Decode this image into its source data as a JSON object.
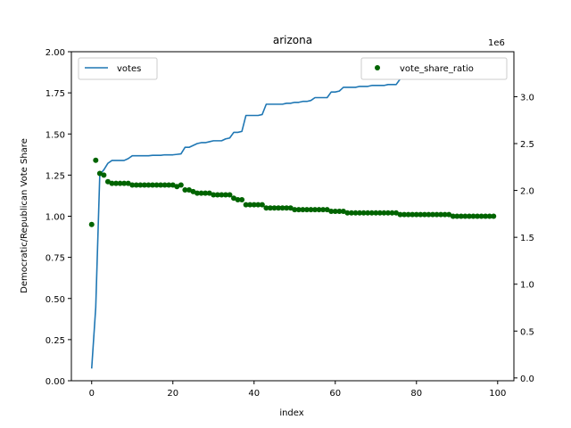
{
  "chart_data": {
    "type": "line+scatter",
    "title": "arizona",
    "xlabel": "index",
    "ylabel": "Democratic/Republican Vote Share",
    "y2_offset_label": "1e6",
    "xlim": [
      -5,
      104
    ],
    "ylim": [
      0,
      2.0
    ],
    "y2lim": [
      -0.03,
      3.48
    ],
    "x_ticks": [
      0,
      20,
      40,
      60,
      80,
      100
    ],
    "x_tick_labels": [
      "0",
      "20",
      "40",
      "60",
      "80",
      "100"
    ],
    "y_ticks": [
      0,
      0.25,
      0.5,
      0.75,
      1.0,
      1.25,
      1.5,
      1.75,
      2.0
    ],
    "y_tick_labels": [
      "0.00",
      "0.25",
      "0.50",
      "0.75",
      "1.00",
      "1.25",
      "1.50",
      "1.75",
      "2.00"
    ],
    "y2_ticks": [
      0,
      0.5,
      1.0,
      1.5,
      2.0,
      2.5,
      3.0
    ],
    "y2_tick_labels": [
      "0.0",
      "0.5",
      "1.0",
      "1.5",
      "2.0",
      "2.5",
      "3.0"
    ],
    "series": [
      {
        "name": "votes",
        "kind": "line",
        "axis": "right",
        "color": "#1f77b4",
        "x": [
          0,
          1,
          2,
          3,
          4,
          5,
          6,
          7,
          8,
          9,
          10,
          11,
          12,
          13,
          14,
          15,
          16,
          17,
          18,
          19,
          20,
          21,
          22,
          23,
          24,
          25,
          26,
          27,
          28,
          29,
          30,
          31,
          32,
          33,
          34,
          35,
          36,
          37,
          38,
          39,
          40,
          41,
          42,
          43,
          44,
          45,
          46,
          47,
          48,
          49,
          50,
          51,
          52,
          53,
          54,
          55,
          56,
          57,
          58,
          59,
          60,
          61,
          62,
          63,
          64,
          65,
          66,
          67,
          68,
          69,
          70,
          71,
          72,
          73,
          74,
          75,
          76,
          77,
          78,
          79,
          80,
          81,
          82,
          83,
          84,
          85,
          86,
          87,
          88,
          89,
          90,
          91,
          92,
          93,
          94,
          95,
          96,
          97,
          98,
          99
        ],
        "values": [
          0.1,
          0.75,
          2.17,
          2.22,
          2.29,
          2.32,
          2.32,
          2.32,
          2.32,
          2.34,
          2.37,
          2.37,
          2.37,
          2.37,
          2.37,
          2.375,
          2.375,
          2.375,
          2.38,
          2.38,
          2.38,
          2.385,
          2.39,
          2.46,
          2.46,
          2.48,
          2.5,
          2.51,
          2.51,
          2.52,
          2.53,
          2.53,
          2.53,
          2.55,
          2.56,
          2.62,
          2.62,
          2.63,
          2.8,
          2.8,
          2.8,
          2.8,
          2.81,
          2.92,
          2.92,
          2.92,
          2.92,
          2.92,
          2.93,
          2.93,
          2.94,
          2.94,
          2.95,
          2.95,
          2.96,
          2.99,
          2.99,
          2.99,
          2.99,
          3.05,
          3.05,
          3.06,
          3.1,
          3.1,
          3.1,
          3.1,
          3.11,
          3.11,
          3.11,
          3.12,
          3.12,
          3.12,
          3.12,
          3.13,
          3.13,
          3.13,
          3.19,
          3.19,
          3.19,
          3.2,
          3.22,
          3.22,
          3.22,
          3.22,
          3.22,
          3.23,
          3.23,
          3.23,
          3.23,
          3.24,
          3.24,
          3.24,
          3.24,
          3.25,
          3.25,
          3.25,
          3.25,
          3.25,
          3.25,
          3.25
        ]
      },
      {
        "name": "vote_share_ratio",
        "kind": "scatter",
        "axis": "left",
        "color": "#006400",
        "x": [
          0,
          1,
          2,
          3,
          4,
          5,
          6,
          7,
          8,
          9,
          10,
          11,
          12,
          13,
          14,
          15,
          16,
          17,
          18,
          19,
          20,
          21,
          22,
          23,
          24,
          25,
          26,
          27,
          28,
          29,
          30,
          31,
          32,
          33,
          34,
          35,
          36,
          37,
          38,
          39,
          40,
          41,
          42,
          43,
          44,
          45,
          46,
          47,
          48,
          49,
          50,
          51,
          52,
          53,
          54,
          55,
          56,
          57,
          58,
          59,
          60,
          61,
          62,
          63,
          64,
          65,
          66,
          67,
          68,
          69,
          70,
          71,
          72,
          73,
          74,
          75,
          76,
          77,
          78,
          79,
          80,
          81,
          82,
          83,
          84,
          85,
          86,
          87,
          88,
          89,
          90,
          91,
          92,
          93,
          94,
          95,
          96,
          97,
          98,
          99
        ],
        "values": [
          0.95,
          1.34,
          1.26,
          1.25,
          1.21,
          1.2,
          1.2,
          1.2,
          1.2,
          1.2,
          1.19,
          1.19,
          1.19,
          1.19,
          1.19,
          1.19,
          1.19,
          1.19,
          1.19,
          1.19,
          1.19,
          1.18,
          1.19,
          1.16,
          1.16,
          1.15,
          1.14,
          1.14,
          1.14,
          1.14,
          1.13,
          1.13,
          1.13,
          1.13,
          1.13,
          1.11,
          1.1,
          1.1,
          1.07,
          1.07,
          1.07,
          1.07,
          1.07,
          1.05,
          1.05,
          1.05,
          1.05,
          1.05,
          1.05,
          1.05,
          1.04,
          1.04,
          1.04,
          1.04,
          1.04,
          1.04,
          1.04,
          1.04,
          1.04,
          1.03,
          1.03,
          1.03,
          1.03,
          1.02,
          1.02,
          1.02,
          1.02,
          1.02,
          1.02,
          1.02,
          1.02,
          1.02,
          1.02,
          1.02,
          1.02,
          1.02,
          1.01,
          1.01,
          1.01,
          1.01,
          1.01,
          1.01,
          1.01,
          1.01,
          1.01,
          1.01,
          1.01,
          1.01,
          1.01,
          1.0,
          1.0,
          1.0,
          1.0,
          1.0,
          1.0,
          1.0,
          1.0,
          1.0,
          1.0,
          1.0
        ]
      }
    ],
    "legends": [
      {
        "placement": "top-left",
        "entries": [
          "votes"
        ]
      },
      {
        "placement": "top-right",
        "entries": [
          "vote_share_ratio"
        ]
      }
    ],
    "grid": false
  }
}
